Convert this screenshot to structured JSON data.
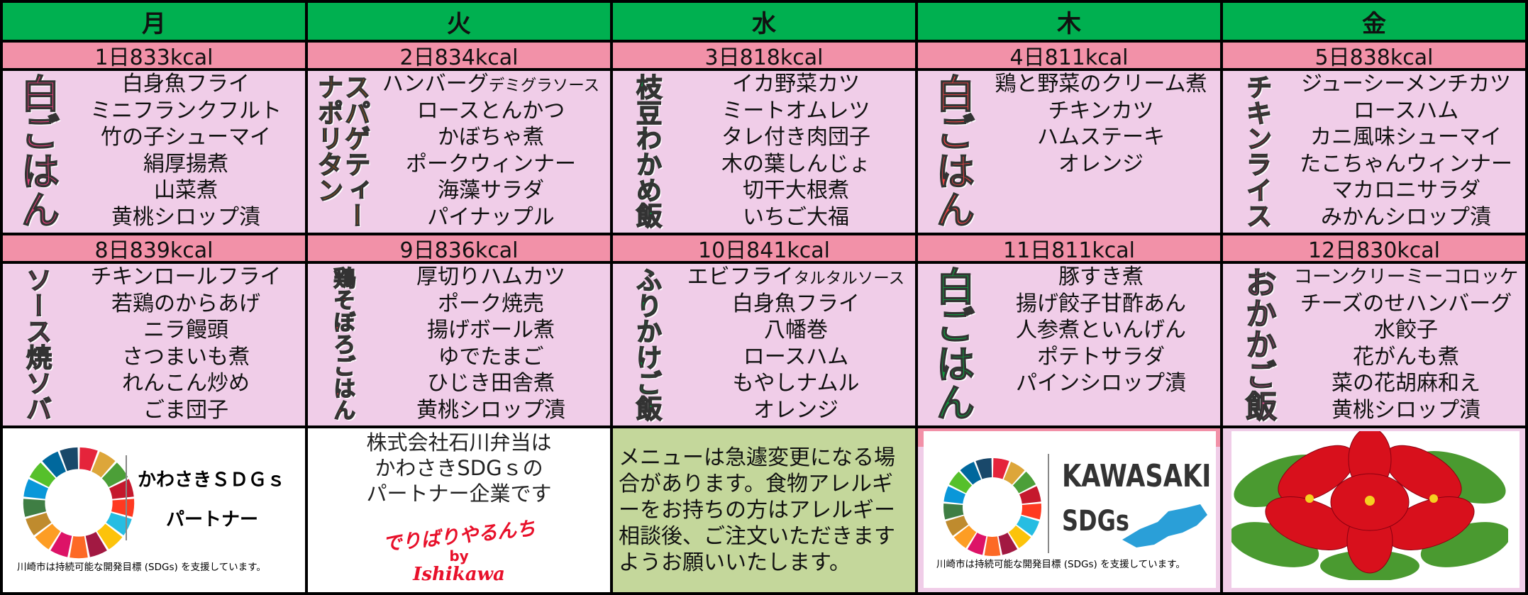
{
  "header": {
    "days": [
      "月",
      "火",
      "水",
      "木",
      "金"
    ]
  },
  "weeks": [
    {
      "days": [
        {
          "date": "1日833kcal",
          "rice": [
            "白ごはん"
          ],
          "rice_color": "#e0407a",
          "items": [
            "白身魚フライ",
            "ミニフランクフルト",
            "竹の子シューマイ",
            "絹厚揚煮",
            "山菜煮",
            "黄桃シロップ漬"
          ]
        },
        {
          "date": "2日834kcal",
          "rice": [
            "スパゲティー",
            "ナポリタン"
          ],
          "rice_color": "#f07800",
          "items": [
            {
              "text": "ハンバーグ",
              "note": "デミグラソース"
            },
            "ロースとんかつ",
            "かぼちゃ煮",
            "ポークウィンナー",
            "海藻サラダ",
            "パイナップル"
          ]
        },
        {
          "date": "3日818kcal",
          "rice": [
            "枝豆わかめ飯"
          ],
          "rice_color": "#00a040",
          "items": [
            "イカ野菜カツ",
            "ミートオムレツ",
            "タレ付き肉団子",
            "木の葉しんじょ",
            "切干大根煮",
            "いちご大福"
          ]
        },
        {
          "date": "4日811kcal",
          "rice": [
            "白ごはん"
          ],
          "rice_color": "#f04545",
          "items": [
            "鶏と野菜のクリーム煮",
            "チキンカツ",
            "ハムステーキ",
            "オレンジ"
          ]
        },
        {
          "date": "5日838kcal",
          "rice": [
            "チキンライス"
          ],
          "rice_color": "#f03c50",
          "items": [
            "ジューシーメンチカツ",
            "ロースハム",
            "カニ風味シューマイ",
            "たこちゃんウィンナー",
            "マカロニサラダ",
            "みかんシロップ漬"
          ]
        }
      ]
    },
    {
      "days": [
        {
          "date": "8日839kcal",
          "rice": [
            "ソース焼ソバ"
          ],
          "rice_color": "#d0407e",
          "items": [
            "チキンロールフライ",
            "若鶏のからあげ",
            "ニラ饅頭",
            "さつまいも煮",
            "れんこん炒め",
            "ごま団子"
          ]
        },
        {
          "date": "9日836kcal",
          "rice": [
            "鶏そぼろごはん"
          ],
          "rice_color": "#f03c3c",
          "items": [
            "厚切りハムカツ",
            "ポーク焼売",
            "揚げボール煮",
            "ゆでたまご",
            "ひじき田舎煮",
            "黄桃シロップ漬"
          ]
        },
        {
          "date": "10日841kcal",
          "rice": [
            "ふりかけご飯"
          ],
          "rice_color": "#00a040",
          "items": [
            {
              "text": "エビフライ",
              "note": "タルタルソース"
            },
            "白身魚フライ",
            "八幡巻",
            "ロースハム",
            "もやしナムル",
            "オレンジ"
          ]
        },
        {
          "date": "11日811kcal",
          "rice": [
            "白ごはん"
          ],
          "rice_color": "#10a040",
          "items": [
            "豚すき煮",
            "揚げ餃子甘酢あん",
            "人参煮といんげん",
            "ポテトサラダ",
            "パインシロップ漬"
          ]
        },
        {
          "date": "12日830kcal",
          "rice": [
            "おかかご飯"
          ],
          "rice_color": "#d0508a",
          "items": [
            "コーンクリーミーコロッケ",
            "チーズのせハンバーグ",
            "水餃子",
            "花がんも煮",
            "菜の花胡麻和え",
            "黄桃シロップ漬"
          ]
        }
      ]
    }
  ],
  "footer": {
    "partner": {
      "title": "かわさきＳＤＧｓ",
      "subtitle": "パートナー",
      "caption": "川崎市は持続可能な開発目標 (SDGs) を支援しています。"
    },
    "company": {
      "lines": [
        "株式会社石川弁当は",
        "かわさきSDGｓの",
        "パートナー企業です"
      ],
      "logo_main": "でりばりやるんち",
      "logo_by": "by",
      "logo_name": "Ishikawa"
    },
    "notice": "メニューは急遽変更になる場合があります。食物アレルギーをお持ちの方はアレルギー相談後、ご注文いただきますようお願いいたします。",
    "kawasaki": {
      "title": "KAWASAKI",
      "subtitle": "SDGs",
      "caption": "川崎市は持続可能な開発目標 (SDGs) を支援しています。"
    }
  }
}
